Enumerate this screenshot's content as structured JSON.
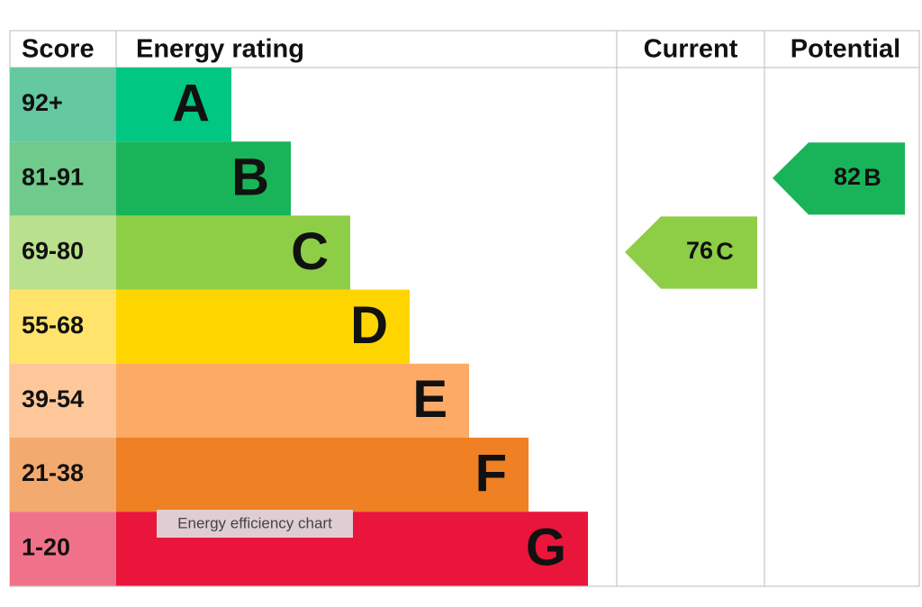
{
  "chart_data": {
    "type": "epc",
    "headers": [
      "Score",
      "Energy rating",
      "Current",
      "Potential"
    ],
    "bands": [
      {
        "score": "92+",
        "rating": "A",
        "color": "#00c781",
        "score_color": "#64c8a0"
      },
      {
        "score": "81-91",
        "rating": "B",
        "color": "#19b459",
        "score_color": "#6fca8b"
      },
      {
        "score": "69-80",
        "rating": "C",
        "color": "#8dce46",
        "score_color": "#b9e08d"
      },
      {
        "score": "55-68",
        "rating": "D",
        "color": "#ffd500",
        "score_color": "#ffe36a"
      },
      {
        "score": "39-54",
        "rating": "E",
        "color": "#fcaa65",
        "score_color": "#fdc79a"
      },
      {
        "score": "21-38",
        "rating": "F",
        "color": "#ef8023",
        "score_color": "#f3aa6f"
      },
      {
        "score": "1-20",
        "rating": "G",
        "color": "#e9153b",
        "score_color": "#f0728a"
      }
    ],
    "current": {
      "value": 76,
      "rating": "C",
      "color": "#8dce46"
    },
    "potential": {
      "value": 82,
      "rating": "B",
      "color": "#19b459"
    },
    "tooltip": "Energy efficiency chart"
  }
}
